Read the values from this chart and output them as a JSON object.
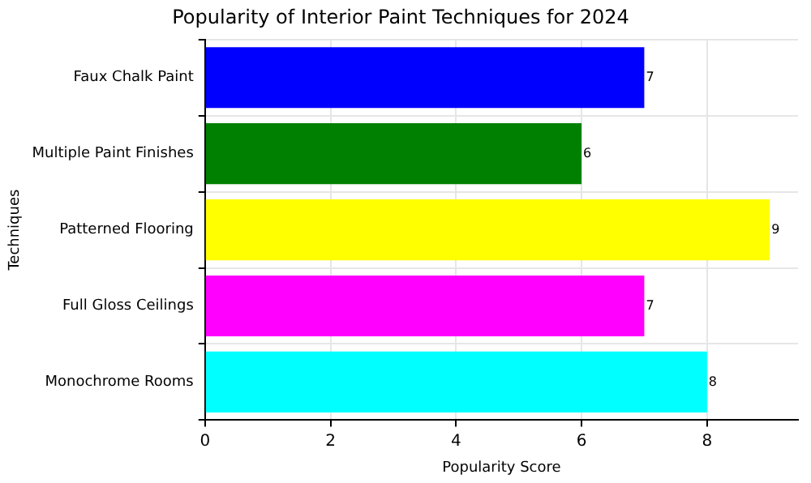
{
  "chart_data": {
    "type": "bar",
    "orientation": "horizontal",
    "title": "Popularity of Interior Paint Techniques for 2024",
    "xlabel": "Popularity Score",
    "ylabel": "Techniques",
    "categories": [
      "Faux Chalk Paint",
      "Multiple Paint Finishes",
      "Patterned Flooring",
      "Full Gloss Ceilings",
      "Monochrome Rooms"
    ],
    "values": [
      7,
      6,
      9,
      7,
      8
    ],
    "colors": [
      "#0000ff",
      "#008000",
      "#ffff00",
      "#ff00ff",
      "#00ffff"
    ],
    "xlim": [
      0,
      9.45
    ],
    "xticks": [
      0,
      2,
      4,
      6,
      8
    ],
    "grid": true,
    "data_labels": true
  }
}
